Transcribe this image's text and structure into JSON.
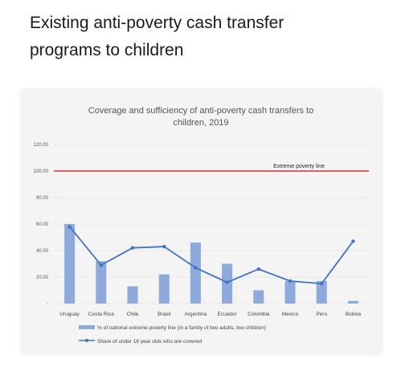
{
  "slide": {
    "title_line1": "Existing anti-poverty cash transfer",
    "title_line2": "programs to children"
  },
  "chart_data": {
    "type": "bar",
    "title_line1": "Coverage and sufficiency of anti-poverty cash transfers to",
    "title_line2": "children, 2019",
    "categories": [
      "Uruguay",
      "Costa Rica",
      "Chile",
      "Brasil",
      "Argentina",
      "Ecuador",
      "Colombia",
      "Mexico",
      "Perú",
      "Bolivia"
    ],
    "yticks": [
      "120.00",
      "100.00",
      "80.00",
      "60.00",
      "40.00",
      "20.00",
      "-"
    ],
    "ylim": [
      0,
      120
    ],
    "grid": true,
    "series": [
      {
        "name": "% of national  extreme poverty line (in a family of two adults, two children)",
        "type": "bar",
        "color": "#8ea9db",
        "values": [
          60,
          32,
          13,
          22,
          46,
          30,
          10,
          17,
          17,
          2
        ]
      },
      {
        "name": "Share of under 18 year olds who are covered",
        "type": "line",
        "color": "#4472c4",
        "values": [
          58,
          29,
          42,
          43,
          27,
          16,
          26,
          17,
          15,
          47
        ]
      }
    ],
    "reference_line": {
      "label": "Extreme poverty line",
      "value": 100,
      "color": "#e03030"
    },
    "legend_position": "bottom"
  }
}
